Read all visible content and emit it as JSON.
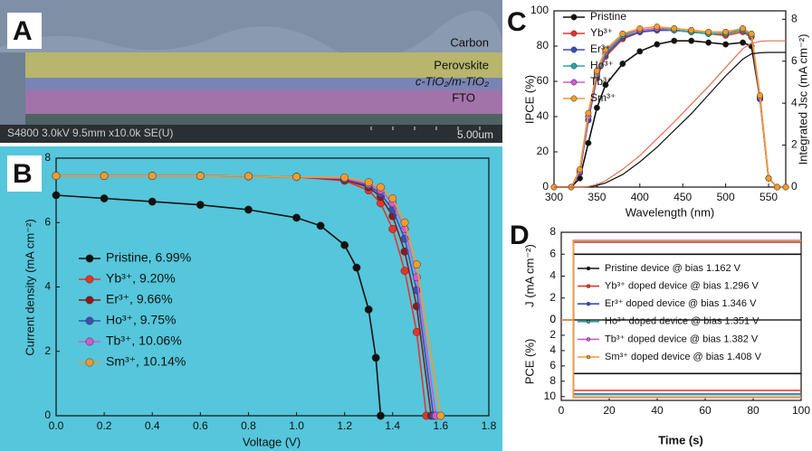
{
  "image_a": {
    "panel_label": "A",
    "layers": [
      "Carbon",
      "Perovskite",
      "c-TiO₂/m-TiO₂",
      "FTO"
    ],
    "info": "S4800 3.0kV 9.5mm x10.0k SE(U)",
    "scale": "5.00um"
  },
  "chart_data": [
    {
      "type": "line",
      "panel_label": "B",
      "xlabel": "Voltage (V)",
      "ylabel": "Current density (mA cm⁻²)",
      "xlim": [
        0,
        1.8
      ],
      "xticks": [
        {
          "value": 0,
          "label": "0.0"
        },
        0.2,
        0.4,
        0.6,
        0.8,
        {
          "value": 1,
          "label": "1.0"
        },
        1.2,
        1.4,
        1.6,
        1.8
      ],
      "ylim": [
        0,
        8
      ],
      "yticks": [
        0,
        2,
        4,
        6,
        8
      ],
      "legend": "center-left",
      "markers": true,
      "series": [
        {
          "name": "Pristine, 6.99%",
          "color": "#111111",
          "x": [
            0,
            0.2,
            0.4,
            0.6,
            0.8,
            1.0,
            1.1,
            1.2,
            1.25,
            1.3,
            1.33,
            1.35
          ],
          "values": [
            6.85,
            6.75,
            6.65,
            6.55,
            6.4,
            6.15,
            5.9,
            5.3,
            4.6,
            3.3,
            1.8,
            0
          ]
        },
        {
          "name": "Yb³⁺, 9.20%",
          "color": "#e8332a",
          "x": [
            0,
            0.2,
            0.4,
            0.6,
            0.8,
            1.0,
            1.2,
            1.3,
            1.35,
            1.4,
            1.45,
            1.5,
            1.54
          ],
          "values": [
            7.45,
            7.45,
            7.45,
            7.45,
            7.44,
            7.42,
            7.3,
            7.0,
            6.6,
            5.8,
            4.5,
            2.6,
            0
          ]
        },
        {
          "name": "Er³⁺,  9.66%",
          "color": "#8b1a1a",
          "x": [
            0,
            0.2,
            0.4,
            0.6,
            0.8,
            1.0,
            1.2,
            1.3,
            1.35,
            1.4,
            1.45,
            1.5,
            1.56
          ],
          "values": [
            7.45,
            7.45,
            7.45,
            7.45,
            7.44,
            7.42,
            7.33,
            7.1,
            6.8,
            6.2,
            5.1,
            3.4,
            0
          ]
        },
        {
          "name": "Ho³⁺, 9.75%",
          "color": "#3a4fb0",
          "x": [
            0,
            0.2,
            0.4,
            0.6,
            0.8,
            1.0,
            1.2,
            1.3,
            1.35,
            1.4,
            1.45,
            1.5,
            1.57
          ],
          "values": [
            7.45,
            7.45,
            7.45,
            7.45,
            7.44,
            7.42,
            7.35,
            7.15,
            6.9,
            6.4,
            5.5,
            3.9,
            0
          ]
        },
        {
          "name": "Tb³⁺, 10.06%",
          "color": "#d05ad0",
          "x": [
            0,
            0.2,
            0.4,
            0.6,
            0.8,
            1.0,
            1.2,
            1.3,
            1.35,
            1.4,
            1.45,
            1.5,
            1.58
          ],
          "values": [
            7.45,
            7.45,
            7.45,
            7.45,
            7.44,
            7.42,
            7.37,
            7.2,
            7.0,
            6.6,
            5.8,
            4.3,
            0
          ]
        },
        {
          "name": "Sm³⁺, 10.14%",
          "color": "#f39c2b",
          "x": [
            0,
            0.2,
            0.4,
            0.6,
            0.8,
            1.0,
            1.2,
            1.3,
            1.35,
            1.4,
            1.45,
            1.5,
            1.6
          ],
          "values": [
            7.45,
            7.45,
            7.45,
            7.45,
            7.44,
            7.42,
            7.4,
            7.25,
            7.1,
            6.75,
            6.0,
            4.7,
            0
          ]
        }
      ]
    },
    {
      "type": "line",
      "panel_label": "C",
      "xlabel": "Wavelength (nm)",
      "ylabel": "IPCE (%)",
      "y2label": "Integrated Jsc (mA cm⁻²)",
      "xlim": [
        300,
        570
      ],
      "xticks": [
        300,
        350,
        400,
        450,
        500,
        550
      ],
      "ylim": [
        0,
        100
      ],
      "yticks": [
        0,
        20,
        40,
        60,
        80,
        100
      ],
      "y2lim": [
        0,
        8.4
      ],
      "y2ticks": [
        0,
        2,
        4,
        6,
        8
      ],
      "legend": "upper-left",
      "markers": true,
      "x": [
        300,
        320,
        330,
        340,
        350,
        360,
        380,
        400,
        420,
        440,
        460,
        480,
        500,
        520,
        530,
        540,
        550,
        560,
        570
      ],
      "series": [
        {
          "name": "Pristine",
          "color": "#111111",
          "values": [
            0,
            0,
            5,
            25,
            45,
            58,
            70,
            77,
            81,
            83,
            83,
            82,
            81,
            82,
            80,
            50,
            5,
            0,
            0
          ]
        },
        {
          "name": "Yb³⁺",
          "color": "#e8332a",
          "values": [
            0,
            0,
            8,
            38,
            62,
            74,
            84,
            88,
            89,
            89,
            88,
            87,
            86,
            88,
            85,
            50,
            5,
            0,
            0
          ]
        },
        {
          "name": "Er³⁺",
          "color": "#3a4fb0",
          "values": [
            0,
            0,
            8,
            38,
            63,
            75,
            85,
            88,
            89,
            89,
            88,
            87,
            87,
            89,
            86,
            50,
            5,
            0,
            0
          ]
        },
        {
          "name": "Ho³⁺",
          "color": "#2aa5a5",
          "values": [
            0,
            0,
            9,
            40,
            64,
            76,
            86,
            89,
            90,
            89,
            88,
            87,
            87,
            89,
            86,
            51,
            5,
            0,
            0
          ]
        },
        {
          "name": "Tb³⁺",
          "color": "#d05ad0",
          "values": [
            0,
            0,
            9,
            40,
            65,
            77,
            87,
            89,
            90,
            90,
            89,
            88,
            88,
            90,
            87,
            51,
            5,
            0,
            0
          ]
        },
        {
          "name": "Sm³⁺",
          "color": "#f39c2b",
          "values": [
            0,
            0,
            10,
            42,
            66,
            78,
            87,
            90,
            91,
            90,
            89,
            88,
            88,
            90,
            87,
            52,
            5,
            0,
            0
          ]
        },
        {
          "color": "#111111",
          "axis": "y2",
          "values": [
            0,
            0,
            0,
            0.02,
            0.08,
            0.2,
            0.6,
            1.2,
            1.9,
            2.7,
            3.5,
            4.4,
            5.3,
            6.1,
            6.35,
            6.4,
            6.42,
            6.42,
            6.42
          ]
        },
        {
          "color": "#e07050",
          "axis": "y2",
          "values": [
            0,
            0,
            0,
            0.03,
            0.12,
            0.3,
            0.85,
            1.5,
            2.3,
            3.1,
            3.95,
            4.8,
            5.7,
            6.6,
            6.85,
            6.95,
            6.97,
            6.97,
            6.97
          ]
        }
      ]
    },
    {
      "type": "line",
      "panel_label": "D",
      "ylabel": "J (mA cm⁻²)",
      "xlim": [
        0,
        100
      ],
      "ylim": [
        0,
        8
      ],
      "yticks": [
        0,
        2,
        4,
        6,
        8
      ],
      "legend": "center",
      "x": [
        0,
        5,
        5,
        100
      ],
      "series": [
        {
          "name": "Pristine device @ bias 1.162 V",
          "color": "#111111",
          "values": [
            0,
            0,
            6.0,
            6.0
          ]
        },
        {
          "name": "Yb³⁺ doped device  @ bias 1.296 V",
          "color": "#e8332a",
          "values": [
            0,
            0,
            7.1,
            7.1
          ]
        },
        {
          "name": "Er³⁺ doped device @ bias 1.346 V",
          "color": "#3a4fb0",
          "values": [
            0,
            0,
            7.15,
            7.15
          ]
        },
        {
          "name": "Ho³⁺ doped device @ bias 1.351 V",
          "color": "#2aa5a5",
          "values": [
            0,
            0,
            7.2,
            7.2
          ]
        },
        {
          "name": "Tb³⁺ doped device @ bias 1.382 V",
          "color": "#d05ad0",
          "values": [
            0,
            0,
            7.25,
            7.25
          ]
        },
        {
          "name": "Sm³⁺ doped device @ bias 1.408 V",
          "color": "#f39c2b",
          "values": [
            0,
            0,
            7.2,
            7.2
          ]
        }
      ]
    },
    {
      "type": "line",
      "xlabel": "Time (s)",
      "ylabel": "PCE (%)",
      "xlim": [
        0,
        100
      ],
      "xticks": [
        0,
        20,
        40,
        60,
        80,
        100
      ],
      "ylim": [
        0,
        10.5
      ],
      "yticks": [
        0,
        2,
        4,
        6,
        8,
        10
      ],
      "y_inverted": true,
      "x": [
        0,
        5,
        5,
        100
      ],
      "series": [
        {
          "color": "#111111",
          "values": [
            0,
            0,
            7.0,
            7.0
          ]
        },
        {
          "color": "#e8332a",
          "values": [
            0,
            0,
            9.2,
            9.2
          ]
        },
        {
          "color": "#3a4fb0",
          "values": [
            0,
            0,
            9.66,
            9.66
          ]
        },
        {
          "color": "#2aa5a5",
          "values": [
            0,
            0,
            9.75,
            9.75
          ]
        },
        {
          "color": "#d05ad0",
          "values": [
            0,
            0,
            10.06,
            10.06
          ]
        },
        {
          "color": "#f39c2b",
          "values": [
            0,
            0,
            10.14,
            10.14
          ]
        }
      ]
    }
  ]
}
